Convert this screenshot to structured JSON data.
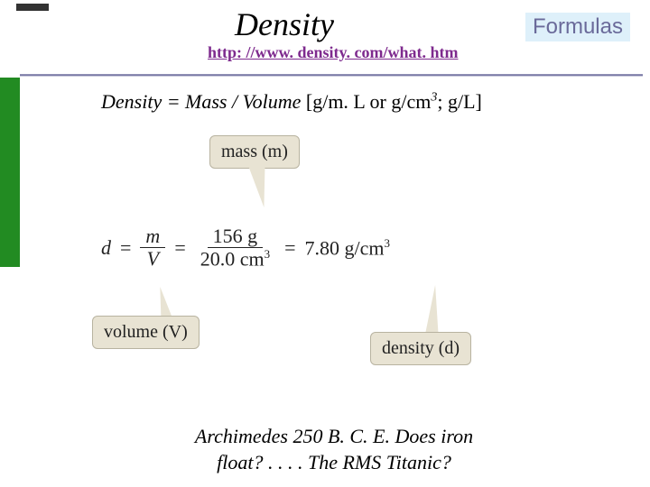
{
  "title": "Density",
  "badge": "Formulas",
  "url": "http: //www. density. com/what. htm",
  "formula_line": {
    "prefix": "Density = Mass / Volume ",
    "units": "[g/m. L or g/cm",
    "sup": "3",
    "suffix": "; g/L]"
  },
  "callouts": {
    "mass": "mass (m)",
    "volume": "volume (V)",
    "density": "density (d)"
  },
  "equation": {
    "d": "d",
    "eq1": "=",
    "frac1_num": "m",
    "frac1_den": "V",
    "eq2": "=",
    "frac2_num": "156 g",
    "frac2_den": "20.0 cm",
    "frac2_den_sup": "3",
    "eq3": "=",
    "result": "7.80 g/cm",
    "result_sup": "3"
  },
  "footer": {
    "line1": "Archimedes 250 B. C. E. Does iron",
    "line2": "float? . . . . The RMS Titanic?"
  },
  "colors": {
    "green": "#228b22",
    "badge_bg": "#def0fa",
    "badge_fg": "#6a6a9a",
    "link": "#7e2a8e",
    "callout_bg": "#e8e3d3"
  }
}
